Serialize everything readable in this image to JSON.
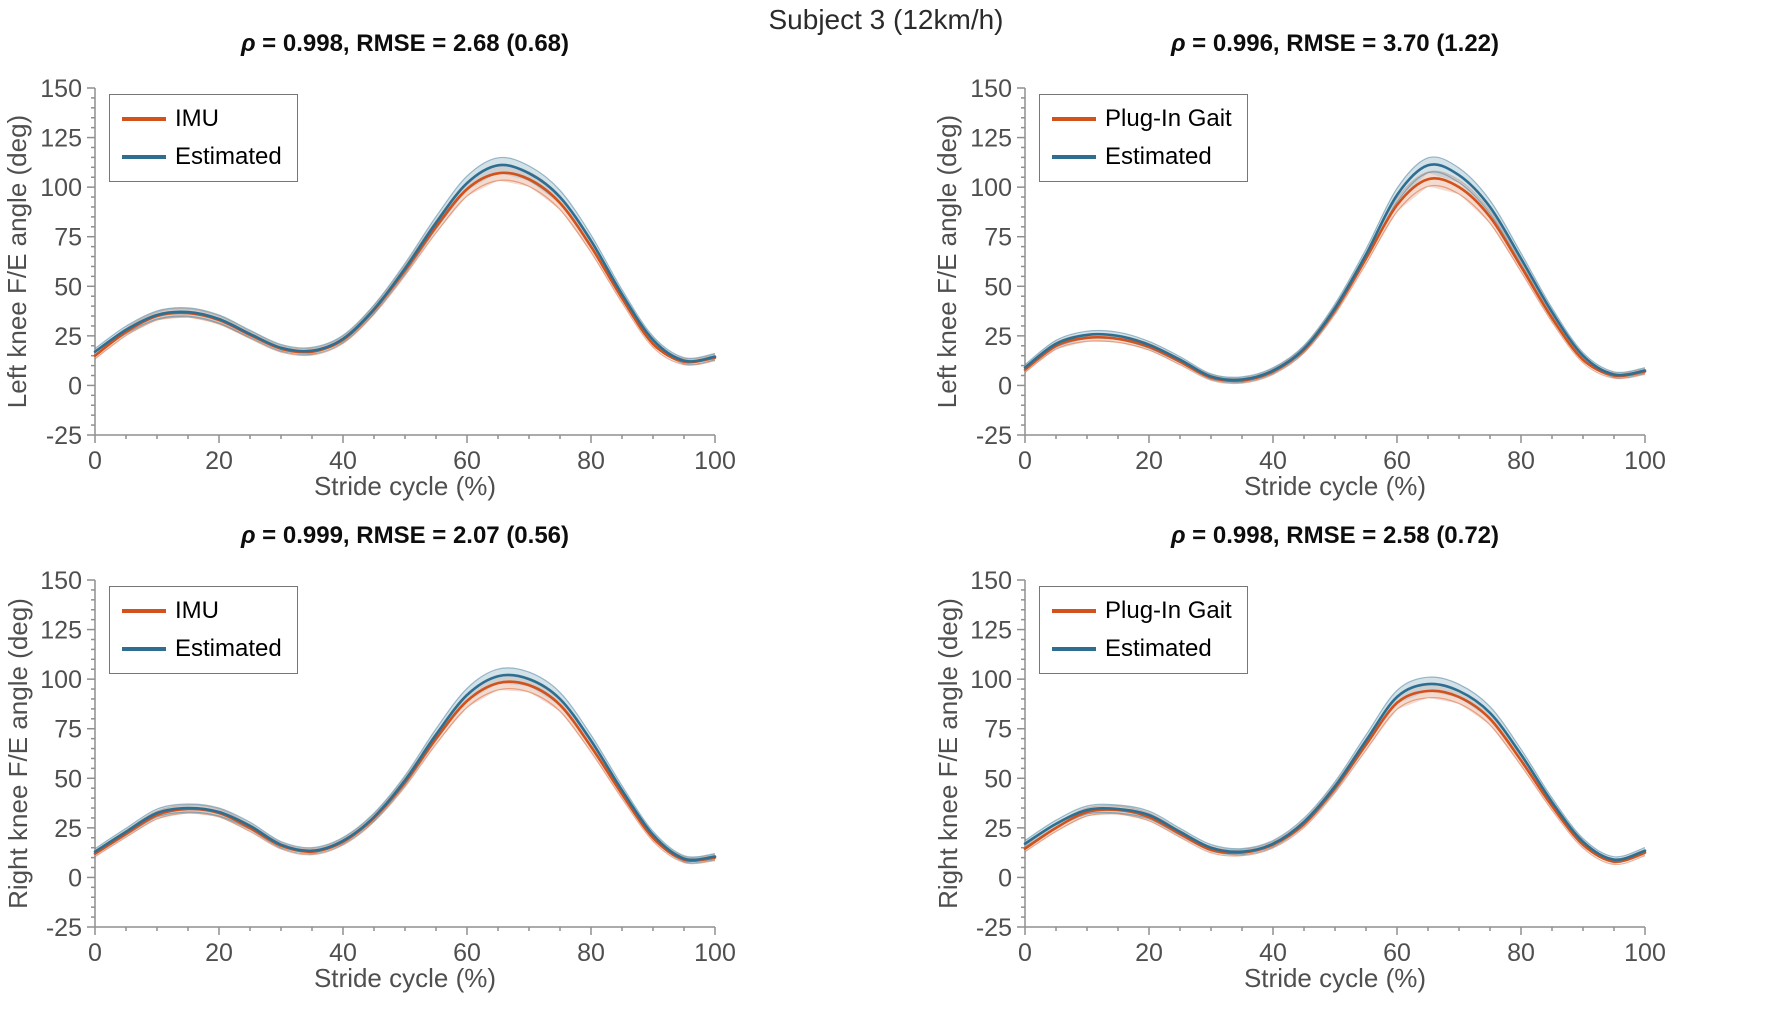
{
  "figure": {
    "title": "Subject 3 (12km/h)"
  },
  "colors": {
    "reference_orange": "#d2521c",
    "estimated_blue": "#2e6f91",
    "axis_line": "#8f8f8f",
    "tick_text": "#4f4f4f",
    "title_text": "#0d0d0d"
  },
  "chart_data": [
    {
      "type": "line",
      "position": "top-left",
      "title_rho": "ρ",
      "title_stats": " = 0.998, RMSE = 2.68 (0.68)",
      "xlabel": "Stride cycle (%)",
      "ylabel": "Left knee F/E angle (deg)",
      "xlim": [
        0,
        100
      ],
      "ylim": [
        -25,
        150
      ],
      "xticks": [
        0,
        20,
        40,
        60,
        80,
        100
      ],
      "yticks": [
        -25,
        0,
        25,
        50,
        75,
        100,
        125,
        150
      ],
      "xminor": 5,
      "yminor": 5,
      "legend_position": "top-left-inside",
      "legend": [
        {
          "label": "IMU",
          "color": "#d2521c"
        },
        {
          "label": "Estimated",
          "color": "#2e6f91"
        }
      ],
      "x": [
        0,
        5,
        10,
        15,
        20,
        25,
        30,
        35,
        40,
        45,
        50,
        55,
        60,
        65,
        70,
        75,
        80,
        85,
        90,
        95,
        100
      ],
      "series": [
        {
          "name": "IMU",
          "color": "#d2521c",
          "values": [
            15,
            27,
            35,
            36.5,
            33,
            25.5,
            18.5,
            17,
            23,
            38,
            58,
            80,
            99,
            107,
            104,
            92,
            70,
            44,
            21,
            12,
            14
          ]
        },
        {
          "name": "Estimated",
          "color": "#2e6f91",
          "values": [
            17,
            28,
            35.5,
            37,
            33.5,
            26,
            19,
            17.5,
            23.5,
            38.5,
            59,
            82,
            102,
            111,
            107,
            95,
            73,
            46,
            23,
            12.5,
            14.5
          ]
        }
      ]
    },
    {
      "type": "line",
      "position": "top-right",
      "title_rho": "ρ",
      "title_stats": " = 0.996, RMSE = 3.70 (1.22)",
      "xlabel": "Stride cycle (%)",
      "ylabel": "Left knee F/E angle (deg)",
      "xlim": [
        0,
        100
      ],
      "ylim": [
        -25,
        150
      ],
      "xticks": [
        0,
        20,
        40,
        60,
        80,
        100
      ],
      "yticks": [
        -25,
        0,
        25,
        50,
        75,
        100,
        125,
        150
      ],
      "xminor": 5,
      "yminor": 5,
      "legend_position": "top-left-inside",
      "legend": [
        {
          "label": "Plug-In Gait",
          "color": "#d2521c"
        },
        {
          "label": "Estimated",
          "color": "#2e6f91"
        }
      ],
      "x": [
        0,
        5,
        10,
        15,
        20,
        25,
        30,
        35,
        40,
        45,
        50,
        55,
        60,
        65,
        70,
        75,
        80,
        85,
        90,
        95,
        100
      ],
      "series": [
        {
          "name": "Plug-In Gait",
          "color": "#d2521c",
          "values": [
            8,
            20,
            24,
            23.5,
            19.5,
            12,
            4,
            2.5,
            7,
            18,
            38,
            64,
            91,
            104,
            100,
            85,
            60,
            34,
            13,
            5,
            7
          ]
        },
        {
          "name": "Estimated",
          "color": "#2e6f91",
          "values": [
            9,
            21,
            25.5,
            25,
            20.5,
            13,
            4.5,
            3,
            7.5,
            18.5,
            39,
            66,
            96,
            111,
            106,
            90,
            64,
            37,
            15,
            5.5,
            7.5
          ]
        }
      ]
    },
    {
      "type": "line",
      "position": "bottom-left",
      "title_rho": "ρ",
      "title_stats": " = 0.999, RMSE = 2.07 (0.56)",
      "xlabel": "Stride cycle (%)",
      "ylabel": "Right knee F/E angle (deg)",
      "xlim": [
        0,
        100
      ],
      "ylim": [
        -25,
        150
      ],
      "xticks": [
        0,
        20,
        40,
        60,
        80,
        100
      ],
      "yticks": [
        -25,
        0,
        25,
        50,
        75,
        100,
        125,
        150
      ],
      "xminor": 5,
      "yminor": 5,
      "legend_position": "top-left-inside",
      "legend": [
        {
          "label": "IMU",
          "color": "#d2521c"
        },
        {
          "label": "Estimated",
          "color": "#2e6f91"
        }
      ],
      "x": [
        0,
        5,
        10,
        15,
        20,
        25,
        30,
        35,
        40,
        45,
        50,
        55,
        60,
        65,
        70,
        75,
        80,
        85,
        90,
        95,
        100
      ],
      "series": [
        {
          "name": "IMU",
          "color": "#d2521c",
          "values": [
            12,
            22,
            31.5,
            34.5,
            32.5,
            25,
            16,
            13,
            18,
            30,
            48,
            70,
            89,
            98,
            97,
            87,
            66,
            42,
            20,
            9,
            10
          ]
        },
        {
          "name": "Estimated",
          "color": "#2e6f91",
          "values": [
            13,
            23,
            32.5,
            35,
            33,
            26,
            16.5,
            13.5,
            18.5,
            30.5,
            49,
            72,
            92,
            101.5,
            100,
            90,
            69,
            44,
            21.5,
            9.5,
            10.5
          ]
        }
      ]
    },
    {
      "type": "line",
      "position": "bottom-right",
      "title_rho": "ρ",
      "title_stats": " = 0.998, RMSE = 2.58 (0.72)",
      "xlabel": "Stride cycle (%)",
      "ylabel": "Right knee F/E angle (deg)",
      "xlim": [
        0,
        100
      ],
      "ylim": [
        -25,
        150
      ],
      "xticks": [
        0,
        20,
        40,
        60,
        80,
        100
      ],
      "yticks": [
        -25,
        0,
        25,
        50,
        75,
        100,
        125,
        150
      ],
      "xminor": 5,
      "yminor": 5,
      "legend_position": "top-left-inside",
      "legend": [
        {
          "label": "Plug-In Gait",
          "color": "#d2521c"
        },
        {
          "label": "Estimated",
          "color": "#2e6f91"
        }
      ],
      "x": [
        0,
        5,
        10,
        15,
        20,
        25,
        30,
        35,
        40,
        45,
        50,
        55,
        60,
        65,
        70,
        75,
        80,
        85,
        90,
        95,
        100
      ],
      "series": [
        {
          "name": "Plug-In Gait",
          "color": "#d2521c",
          "values": [
            14.5,
            25,
            33,
            34,
            30.5,
            22,
            14,
            12.5,
            16.5,
            27,
            45,
            67,
            88,
            94,
            91,
            80,
            59,
            36,
            16.5,
            8,
            12.5
          ]
        },
        {
          "name": "Estimated",
          "color": "#2e6f91",
          "values": [
            17,
            27,
            34,
            34.5,
            31.5,
            23,
            15,
            13,
            17,
            28,
            46,
            69,
            91,
            97.5,
            94,
            83,
            62,
            38,
            18,
            9,
            13.5
          ]
        }
      ]
    }
  ]
}
